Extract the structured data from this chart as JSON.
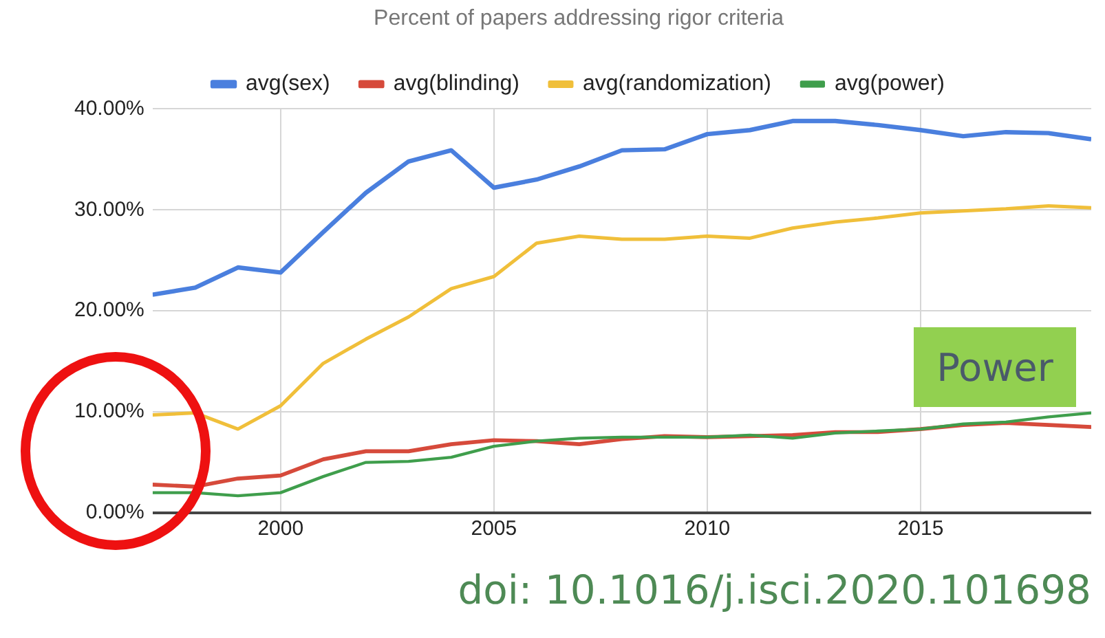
{
  "chart_data": {
    "type": "line",
    "title": "Percent of papers addressing rigor criteria",
    "x": [
      1997,
      1998,
      1999,
      2000,
      2001,
      2002,
      2003,
      2004,
      2005,
      2006,
      2007,
      2008,
      2009,
      2010,
      2011,
      2012,
      2013,
      2014,
      2015,
      2016,
      2017,
      2018,
      2019
    ],
    "series": [
      {
        "name": "avg(sex)",
        "color": "#4a7fde",
        "values": [
          21.6,
          22.3,
          24.3,
          23.8,
          27.8,
          31.7,
          34.8,
          35.9,
          32.2,
          33.0,
          34.3,
          35.9,
          36.0,
          37.5,
          37.9,
          38.8,
          38.8,
          38.4,
          37.9,
          37.3,
          37.7,
          37.6,
          37.0
        ]
      },
      {
        "name": "avg(blinding)",
        "color": "#d64a3b",
        "values": [
          2.8,
          2.6,
          3.4,
          3.7,
          5.3,
          6.1,
          6.1,
          6.8,
          7.2,
          7.1,
          6.8,
          7.3,
          7.6,
          7.5,
          7.6,
          7.7,
          8.0,
          8.0,
          8.3,
          8.7,
          8.9,
          8.7,
          8.5
        ]
      },
      {
        "name": "avg(randomization)",
        "color": "#f0bf3a",
        "values": [
          9.7,
          9.9,
          8.3,
          10.6,
          14.8,
          17.2,
          19.4,
          22.2,
          23.4,
          26.7,
          27.4,
          27.1,
          27.1,
          27.4,
          27.2,
          28.2,
          28.8,
          29.2,
          29.7,
          29.9,
          30.1,
          30.4,
          30.2
        ]
      },
      {
        "name": "avg(power)",
        "color": "#3f9e4c",
        "values": [
          2.0,
          2.0,
          1.7,
          2.0,
          3.6,
          5.0,
          5.1,
          5.5,
          6.6,
          7.1,
          7.4,
          7.5,
          7.5,
          7.5,
          7.7,
          7.4,
          7.9,
          8.1,
          8.3,
          8.8,
          9.0,
          9.5,
          9.9
        ]
      }
    ],
    "xlim": [
      1997,
      2019
    ],
    "xticks": [
      2000,
      2005,
      2010,
      2015
    ],
    "ylim": [
      0,
      40
    ],
    "yticks": [
      {
        "value": 0,
        "label": "0.00%"
      },
      {
        "value": 10,
        "label": "10.00%"
      },
      {
        "value": 20,
        "label": "20.00%"
      },
      {
        "value": 30,
        "label": "30.00%"
      },
      {
        "value": 40,
        "label": "40.00%"
      }
    ],
    "grid": true,
    "legend": "top",
    "marker": "none",
    "line_style": "solid",
    "annotations": [
      "Power",
      "doi: 10.1016/j.isci.2020.101698"
    ]
  }
}
